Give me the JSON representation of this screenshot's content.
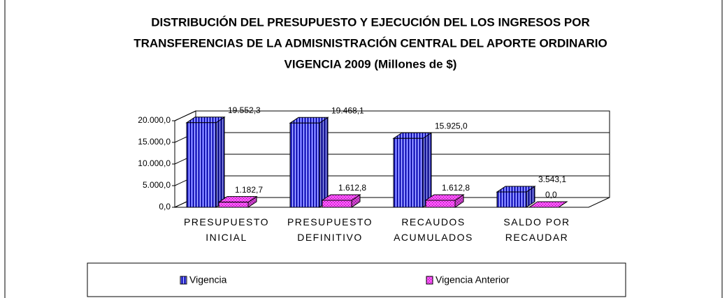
{
  "chart_data": {
    "type": "bar3d",
    "title": [
      "DISTRIBUCIÓN DEL PRESUPUESTO Y EJECUCIÓN DEL LOS INGRESOS POR",
      "TRANSFERENCIAS DE LA ADMISNISTRACIÓN CENTRAL DEL APORTE ORDINARIO",
      "VIGENCIA 2009 (Millones de $)"
    ],
    "categories": [
      "PRESUPUESTO INICIAL",
      "PRESUPUESTO DEFINITIVO",
      "RECAUDOS ACUMULADOS",
      "SALDO POR RECAUDAR"
    ],
    "series": [
      {
        "name": "Vigencia",
        "color": "#3333ff",
        "values": [
          19552.3,
          19468.1,
          15925.0,
          3543.1
        ],
        "value_labels": [
          "19.552,3",
          "19.468,1",
          "15.925,0",
          "3.543,1"
        ]
      },
      {
        "name": "Vigencia Anterior",
        "color": "#ff33ff",
        "values": [
          1182.7,
          1612.8,
          1612.8,
          0.0
        ],
        "value_labels": [
          "1.182,7",
          "1.612,8",
          "1.612,8",
          "0,0"
        ]
      }
    ],
    "ylim": [
      0,
      20000
    ],
    "yticks": [
      {
        "value": 0,
        "label": "0,0"
      },
      {
        "value": 5000,
        "label": "5.000,0"
      },
      {
        "value": 10000,
        "label": "10.000,0"
      },
      {
        "value": 15000,
        "label": "15.000,0"
      },
      {
        "value": 20000,
        "label": "20.000,0"
      }
    ],
    "grid": true,
    "legend": "bottom"
  }
}
